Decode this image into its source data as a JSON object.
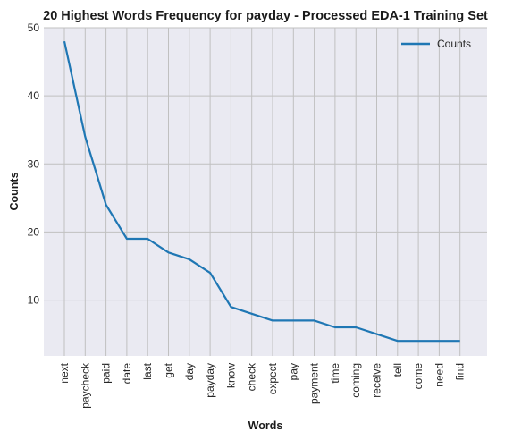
{
  "chart_data": {
    "type": "line",
    "title": "20 Highest Words Frequency for payday - Processed EDA-1 Training Set",
    "xlabel": "Words",
    "ylabel": "Counts",
    "categories": [
      "next",
      "paycheck",
      "paid",
      "date",
      "last",
      "get",
      "day",
      "payday",
      "know",
      "check",
      "expect",
      "pay",
      "payment",
      "time",
      "coming",
      "receive",
      "tell",
      "come",
      "need",
      "find"
    ],
    "series": [
      {
        "name": "Counts",
        "values": [
          48,
          34,
          24,
          19,
          19,
          17,
          16,
          14,
          9,
          8,
          7,
          7,
          7,
          6,
          6,
          5,
          4,
          4,
          4,
          4
        ]
      }
    ],
    "ylim": [
      1.8,
      50
    ],
    "yticks": [
      10,
      20,
      30,
      40,
      50
    ],
    "grid": true,
    "legend_position": "top-right",
    "colors": {
      "line": "#1f77b4",
      "plot_bg": "#eaeaf2",
      "grid": "#c0c0c0"
    }
  }
}
